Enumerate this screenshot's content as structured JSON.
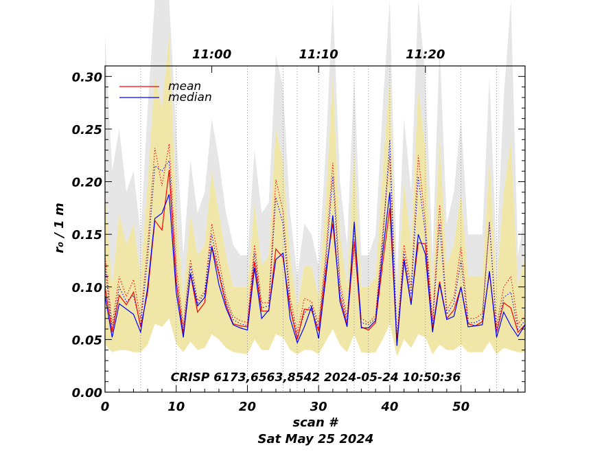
{
  "chart_data": {
    "type": "line",
    "xlabel": "scan #",
    "ylabel": "r₀ / 1 m",
    "date_label": "Sat May 25 2024",
    "annotation": "CRISP 6173,6563,8542 2024-05-24 10:50:36",
    "top_time_labels": [
      "11:00",
      "11:10",
      "11:20"
    ],
    "top_time_positions": [
      15,
      30,
      45
    ],
    "xlim": [
      0,
      59
    ],
    "ylim": [
      0,
      0.31
    ],
    "x_ticks": [
      0,
      10,
      20,
      30,
      40,
      50
    ],
    "x_tick_labels": [
      "0",
      "10",
      "20",
      "30",
      "40",
      "50"
    ],
    "y_ticks": [
      0.0,
      0.05,
      0.1,
      0.15,
      0.2,
      0.25,
      0.3
    ],
    "y_tick_labels": [
      "0.00",
      "0.05",
      "0.10",
      "0.15",
      "0.20",
      "0.25",
      "0.30"
    ],
    "vertical_dotted_lines": [
      5,
      10,
      20,
      25,
      27,
      30,
      35,
      37,
      40,
      45,
      50,
      55
    ],
    "legend": {
      "position": "top-left",
      "entries": [
        {
          "label": "mean",
          "color": "#ff0000"
        },
        {
          "label": "median",
          "color": "#0000ff"
        }
      ]
    },
    "band_colors": {
      "outer": "#e6e6e6",
      "inner": "#efe6a8"
    },
    "series": [
      {
        "name": "mean",
        "color": "#ff0000",
        "x": [
          0,
          1,
          2,
          3,
          4,
          5,
          6,
          7,
          8,
          9,
          10,
          11,
          12,
          13,
          14,
          15,
          16,
          17,
          18,
          19,
          20,
          21,
          22,
          23,
          24,
          25,
          26,
          27,
          28,
          29,
          30,
          31,
          32,
          33,
          34,
          35,
          36,
          37,
          38,
          39,
          40,
          41,
          42,
          43,
          44,
          45,
          46,
          47,
          48,
          49,
          50,
          51,
          52,
          53,
          54,
          55,
          56,
          57,
          58,
          59
        ],
        "values": [
          0.1,
          0.057,
          0.092,
          0.083,
          0.095,
          0.062,
          0.095,
          0.163,
          0.154,
          0.211,
          0.105,
          0.055,
          0.112,
          0.076,
          0.085,
          0.139,
          0.112,
          0.083,
          0.065,
          0.063,
          0.062,
          0.124,
          0.077,
          0.077,
          0.136,
          0.128,
          0.08,
          0.05,
          0.079,
          0.078,
          0.058,
          0.115,
          0.16,
          0.091,
          0.064,
          0.143,
          0.062,
          0.059,
          0.066,
          0.122,
          0.175,
          0.047,
          0.127,
          0.085,
          0.142,
          0.141,
          0.06,
          0.105,
          0.07,
          0.078,
          0.1,
          0.065,
          0.063,
          0.067,
          0.113,
          0.057,
          0.085,
          0.08,
          0.057,
          0.064
        ]
      },
      {
        "name": "median",
        "color": "#0000ff",
        "x": [
          0,
          1,
          2,
          3,
          4,
          5,
          6,
          7,
          8,
          9,
          10,
          11,
          12,
          13,
          14,
          15,
          16,
          17,
          18,
          19,
          20,
          21,
          22,
          23,
          24,
          25,
          26,
          27,
          28,
          29,
          30,
          31,
          32,
          33,
          34,
          35,
          36,
          37,
          38,
          39,
          40,
          41,
          42,
          43,
          44,
          45,
          46,
          47,
          48,
          49,
          50,
          51,
          52,
          53,
          54,
          55,
          56,
          57,
          58,
          59
        ],
        "values": [
          0.092,
          0.052,
          0.084,
          0.079,
          0.074,
          0.057,
          0.1,
          0.165,
          0.17,
          0.188,
          0.095,
          0.052,
          0.113,
          0.082,
          0.09,
          0.138,
          0.102,
          0.08,
          0.064,
          0.061,
          0.059,
          0.118,
          0.07,
          0.078,
          0.126,
          0.132,
          0.07,
          0.047,
          0.062,
          0.081,
          0.051,
          0.108,
          0.168,
          0.086,
          0.062,
          0.162,
          0.061,
          0.061,
          0.068,
          0.132,
          0.19,
          0.044,
          0.125,
          0.083,
          0.15,
          0.131,
          0.057,
          0.103,
          0.069,
          0.072,
          0.1,
          0.062,
          0.063,
          0.064,
          0.115,
          0.052,
          0.076,
          0.063,
          0.053,
          0.064
        ]
      },
      {
        "name": "mean (dotted)",
        "color": "#ff0000",
        "x": [
          0,
          1,
          2,
          3,
          4,
          5,
          6,
          7,
          8,
          9,
          10,
          11,
          12,
          13,
          14,
          15,
          16,
          17,
          18,
          19,
          20,
          21,
          22,
          23,
          24,
          25,
          26,
          27,
          28,
          29,
          30,
          31,
          32,
          33,
          34,
          35,
          36,
          37,
          38,
          39,
          40,
          41,
          42,
          43,
          44,
          45,
          46,
          47,
          48,
          49,
          50,
          51,
          52,
          53,
          54,
          55,
          56,
          57,
          58,
          59
        ],
        "values": [
          0.13,
          0.064,
          0.11,
          0.091,
          0.107,
          0.07,
          0.14,
          0.232,
          0.196,
          0.236,
          0.12,
          0.063,
          0.126,
          0.087,
          0.096,
          0.16,
          0.125,
          0.09,
          0.072,
          0.068,
          0.066,
          0.14,
          0.085,
          0.085,
          0.202,
          0.172,
          0.09,
          0.056,
          0.089,
          0.086,
          0.065,
          0.13,
          0.218,
          0.104,
          0.072,
          0.145,
          0.07,
          0.066,
          0.073,
          0.15,
          0.225,
          0.052,
          0.14,
          0.1,
          0.225,
          0.16,
          0.068,
          0.178,
          0.078,
          0.09,
          0.138,
          0.07,
          0.07,
          0.075,
          0.16,
          0.063,
          0.1,
          0.11,
          0.065,
          0.072
        ]
      },
      {
        "name": "median (dotted)",
        "color": "#0000ff",
        "x": [
          0,
          1,
          2,
          3,
          4,
          5,
          6,
          7,
          8,
          9,
          10,
          11,
          12,
          13,
          14,
          15,
          16,
          17,
          18,
          19,
          20,
          21,
          22,
          23,
          24,
          25,
          26,
          27,
          28,
          29,
          30,
          31,
          32,
          33,
          34,
          35,
          36,
          37,
          38,
          39,
          40,
          41,
          42,
          43,
          44,
          45,
          46,
          47,
          48,
          49,
          50,
          51,
          52,
          53,
          54,
          55,
          56,
          57,
          58,
          59
        ],
        "values": [
          0.12,
          0.058,
          0.1,
          0.086,
          0.092,
          0.064,
          0.128,
          0.215,
          0.21,
          0.22,
          0.108,
          0.058,
          0.12,
          0.084,
          0.094,
          0.15,
          0.115,
          0.086,
          0.069,
          0.065,
          0.063,
          0.132,
          0.08,
          0.082,
          0.185,
          0.16,
          0.082,
          0.052,
          0.075,
          0.083,
          0.06,
          0.122,
          0.205,
          0.098,
          0.068,
          0.158,
          0.066,
          0.064,
          0.07,
          0.142,
          0.24,
          0.048,
          0.133,
          0.093,
          0.205,
          0.15,
          0.063,
          0.16,
          0.074,
          0.084,
          0.125,
          0.066,
          0.066,
          0.07,
          0.162,
          0.058,
          0.09,
          0.095,
          0.06,
          0.068
        ]
      }
    ]
  },
  "bands": {
    "outer_upper": [
      0.34,
      0.21,
      0.25,
      0.19,
      0.21,
      0.15,
      0.27,
      0.42,
      0.4,
      0.44,
      0.25,
      0.13,
      0.22,
      0.17,
      0.19,
      0.26,
      0.22,
      0.17,
      0.14,
      0.13,
      0.13,
      0.23,
      0.17,
      0.18,
      0.32,
      0.29,
      0.17,
      0.11,
      0.16,
      0.15,
      0.12,
      0.23,
      0.42,
      0.2,
      0.14,
      0.3,
      0.13,
      0.13,
      0.15,
      0.27,
      0.42,
      0.11,
      0.26,
      0.19,
      0.4,
      0.3,
      0.13,
      0.33,
      0.16,
      0.19,
      0.26,
      0.15,
      0.15,
      0.15,
      0.3,
      0.13,
      0.28,
      0.42,
      0.13,
      0.17
    ],
    "inner_upper": [
      0.19,
      0.1,
      0.17,
      0.14,
      0.16,
      0.11,
      0.2,
      0.3,
      0.27,
      0.34,
      0.17,
      0.09,
      0.17,
      0.13,
      0.14,
      0.21,
      0.17,
      0.13,
      0.1,
      0.1,
      0.1,
      0.18,
      0.12,
      0.13,
      0.25,
      0.22,
      0.13,
      0.08,
      0.12,
      0.12,
      0.09,
      0.18,
      0.3,
      0.15,
      0.1,
      0.23,
      0.1,
      0.1,
      0.11,
      0.21,
      0.3,
      0.08,
      0.2,
      0.14,
      0.29,
      0.23,
      0.1,
      0.24,
      0.12,
      0.14,
      0.19,
      0.11,
      0.11,
      0.11,
      0.22,
      0.1,
      0.19,
      0.24,
      0.1,
      0.13
    ],
    "inner_lower": [
      0.045,
      0.038,
      0.04,
      0.04,
      0.038,
      0.038,
      0.045,
      0.065,
      0.062,
      0.07,
      0.046,
      0.038,
      0.048,
      0.04,
      0.042,
      0.055,
      0.05,
      0.042,
      0.038,
      0.037,
      0.036,
      0.05,
      0.04,
      0.04,
      0.055,
      0.052,
      0.04,
      0.036,
      0.04,
      0.04,
      0.036,
      0.048,
      0.06,
      0.045,
      0.038,
      0.055,
      0.038,
      0.037,
      0.038,
      0.05,
      0.065,
      0.034,
      0.05,
      0.042,
      0.055,
      0.052,
      0.036,
      0.045,
      0.04,
      0.04,
      0.045,
      0.038,
      0.038,
      0.038,
      0.048,
      0.036,
      0.042,
      0.04,
      0.038,
      0.038
    ]
  }
}
